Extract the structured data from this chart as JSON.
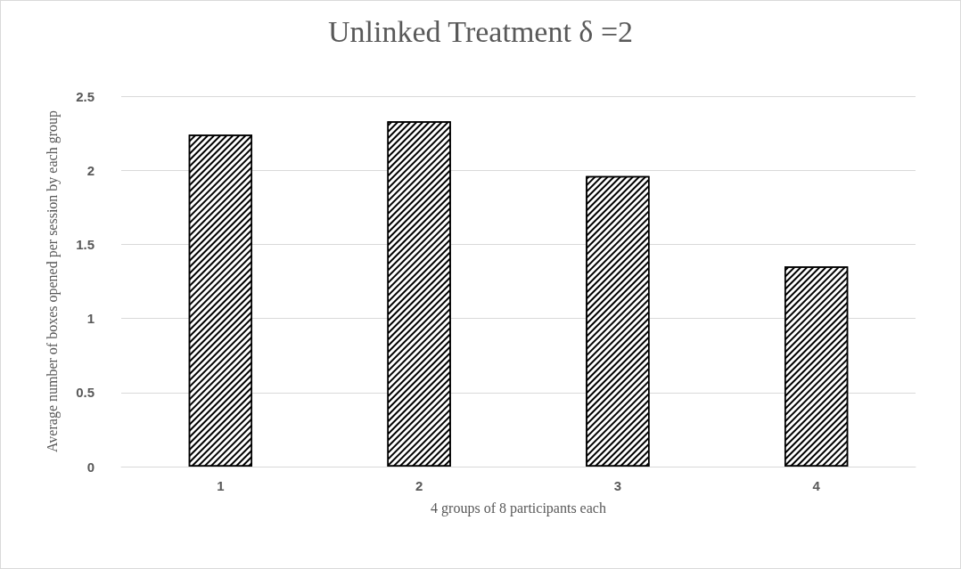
{
  "chart_data": {
    "type": "bar",
    "title": "Unlinked Treatment δ =2",
    "xlabel": "4 groups of 8 participants each",
    "ylabel": "Average number of boxes opened per session by each group",
    "categories": [
      "1",
      "2",
      "3",
      "4"
    ],
    "values": [
      2.24,
      2.33,
      1.96,
      1.35
    ],
    "color": "#000000",
    "ylim": [
      0,
      2.5
    ],
    "yticks": [
      0,
      0.5,
      1,
      1.5,
      2,
      2.5
    ],
    "grid": "y"
  }
}
